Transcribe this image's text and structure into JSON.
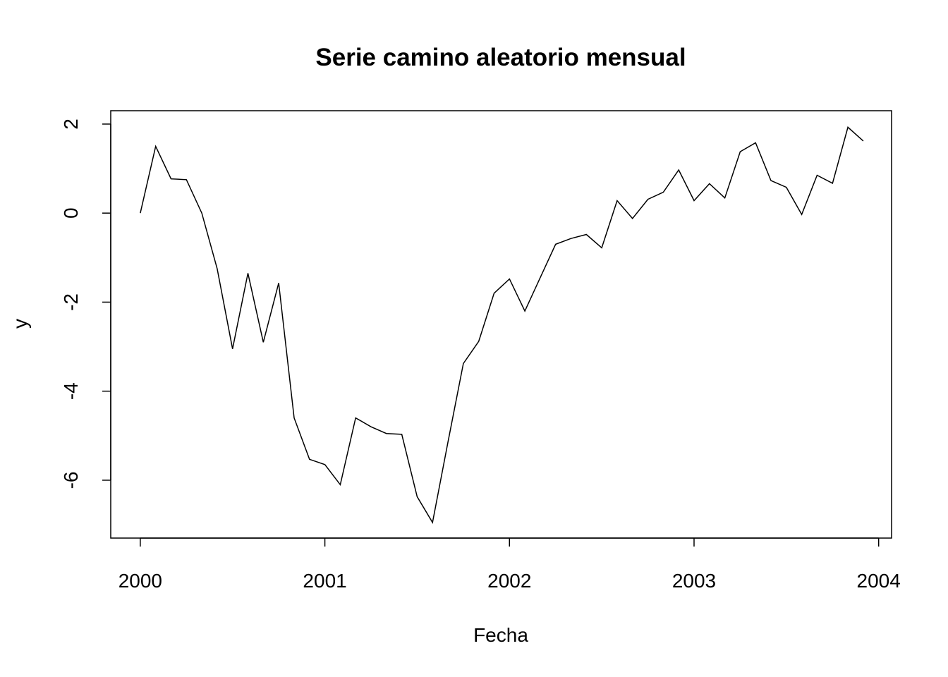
{
  "chart_data": {
    "type": "line",
    "title": "Serie camino aleatorio mensual",
    "xlabel": "Fecha",
    "ylabel": "y",
    "xlim": [
      1999.84,
      2004.07
    ],
    "ylim": [
      -7.3,
      2.3
    ],
    "x_ticks": [
      2000,
      2001,
      2002,
      2003,
      2004
    ],
    "y_ticks": [
      -6,
      -4,
      -2,
      0,
      2
    ],
    "grid": false,
    "x_start": 2000,
    "x_step": 0.0833333,
    "series": [
      {
        "values": [
          0.0,
          1.5,
          0.77,
          0.75,
          0.0,
          -1.25,
          -3.05,
          -1.35,
          -2.9,
          -1.57,
          -4.6,
          -5.53,
          -5.65,
          -6.1,
          -4.6,
          -4.8,
          -4.95,
          -4.97,
          -6.37,
          -6.95,
          -5.15,
          -3.38,
          -2.88,
          -1.8,
          -1.48,
          -2.2,
          -1.45,
          -0.7,
          -0.57,
          -0.48,
          -0.78,
          0.28,
          -0.12,
          0.31,
          0.47,
          0.97,
          0.28,
          0.66,
          0.34,
          1.38,
          1.58,
          0.73,
          0.58,
          -0.03,
          0.85,
          0.67,
          1.93,
          1.62
        ],
        "color": "#000000"
      }
    ]
  }
}
